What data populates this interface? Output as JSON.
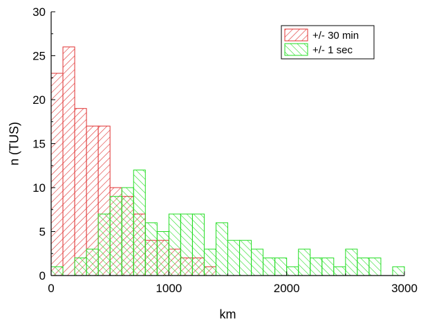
{
  "chart_data": {
    "type": "bar",
    "subtype": "histogram-overlay",
    "xlabel": "km",
    "ylabel": "n (TUS)",
    "xlim": [
      0,
      3000
    ],
    "ylim": [
      0,
      30
    ],
    "x_ticks": [
      0,
      1000,
      2000,
      3000
    ],
    "y_ticks": [
      0,
      5,
      10,
      15,
      20,
      25,
      30
    ],
    "bin_width": 100,
    "legend_position": "top-right",
    "grid": false,
    "series": [
      {
        "name": "+/- 30 min",
        "color": "#e03030",
        "fill": "hatch-diagonal-right",
        "bins": [
          {
            "x": 0,
            "value": 23
          },
          {
            "x": 100,
            "value": 26
          },
          {
            "x": 200,
            "value": 19
          },
          {
            "x": 300,
            "value": 17
          },
          {
            "x": 400,
            "value": 17
          },
          {
            "x": 500,
            "value": 10
          },
          {
            "x": 600,
            "value": 9
          },
          {
            "x": 700,
            "value": 7
          },
          {
            "x": 800,
            "value": 4
          },
          {
            "x": 900,
            "value": 4
          },
          {
            "x": 1000,
            "value": 3
          },
          {
            "x": 1100,
            "value": 2
          },
          {
            "x": 1200,
            "value": 2
          },
          {
            "x": 1300,
            "value": 1
          }
        ]
      },
      {
        "name": "+/- 1 sec",
        "color": "#22dd22",
        "fill": "hatch-diagonal-left",
        "bins": [
          {
            "x": 0,
            "value": 1
          },
          {
            "x": 200,
            "value": 2
          },
          {
            "x": 300,
            "value": 3
          },
          {
            "x": 400,
            "value": 7
          },
          {
            "x": 500,
            "value": 9
          },
          {
            "x": 600,
            "value": 10
          },
          {
            "x": 700,
            "value": 12
          },
          {
            "x": 800,
            "value": 6
          },
          {
            "x": 900,
            "value": 5
          },
          {
            "x": 1000,
            "value": 7
          },
          {
            "x": 1100,
            "value": 7
          },
          {
            "x": 1200,
            "value": 7
          },
          {
            "x": 1300,
            "value": 3
          },
          {
            "x": 1400,
            "value": 6
          },
          {
            "x": 1500,
            "value": 4
          },
          {
            "x": 1600,
            "value": 4
          },
          {
            "x": 1700,
            "value": 3
          },
          {
            "x": 1800,
            "value": 2
          },
          {
            "x": 1900,
            "value": 2
          },
          {
            "x": 2000,
            "value": 1
          },
          {
            "x": 2100,
            "value": 3
          },
          {
            "x": 2200,
            "value": 2
          },
          {
            "x": 2300,
            "value": 2
          },
          {
            "x": 2400,
            "value": 1
          },
          {
            "x": 2500,
            "value": 3
          },
          {
            "x": 2600,
            "value": 2
          },
          {
            "x": 2700,
            "value": 2
          },
          {
            "x": 2900,
            "value": 1
          }
        ]
      }
    ]
  }
}
